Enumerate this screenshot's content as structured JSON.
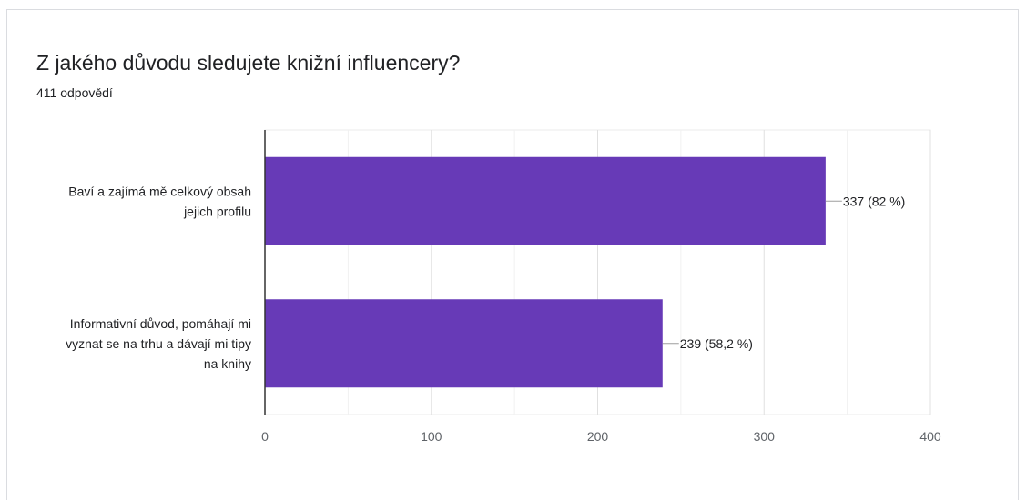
{
  "card": {
    "title": "Z jakého důvodu sledujete knižní influencery?",
    "response_count": "411 odpovědí"
  },
  "chart_data": {
    "type": "bar",
    "orientation": "horizontal",
    "categories": [
      [
        "Baví a zajímá mě celkový obsah",
        "jejich profilu"
      ],
      [
        "Informativní důvod, pomáhají mi",
        "vyznat se na trhu a dávají mi tipy",
        "na knihy"
      ]
    ],
    "values": [
      337,
      239
    ],
    "data_labels": [
      "337 (82 %)",
      "239 (58,2 %)"
    ],
    "xlim": [
      0,
      400
    ],
    "xticks": [
      0,
      100,
      200,
      300,
      400
    ],
    "tick_labels": [
      "0",
      "100",
      "200",
      "300",
      "400"
    ],
    "grid": true,
    "bar_color": "#673ab7"
  }
}
